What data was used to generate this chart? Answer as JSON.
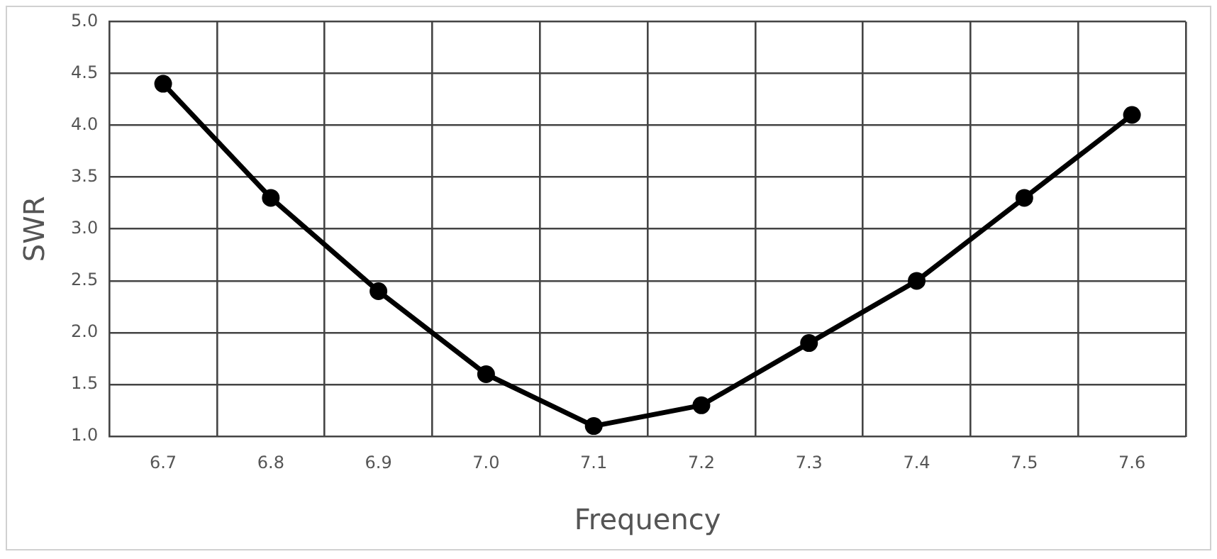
{
  "chart_data": {
    "type": "line",
    "xlabel": "Frequency",
    "ylabel": "SWR",
    "categories": [
      "6.7",
      "6.8",
      "6.9",
      "7.0",
      "7.1",
      "7.2",
      "7.3",
      "7.4",
      "7.5",
      "7.6"
    ],
    "series": [
      {
        "color": "#000000",
        "values": [
          4.4,
          3.3,
          2.4,
          1.6,
          1.1,
          1.3,
          1.9,
          2.5,
          3.3,
          4.1
        ]
      }
    ],
    "ylim": [
      1.0,
      5.0
    ],
    "yticks": [
      {
        "value": 1,
        "label": "1.0"
      },
      {
        "value": 1.5,
        "label": "1.5"
      },
      {
        "value": 2,
        "label": "2.0"
      },
      {
        "value": 2.5,
        "label": "2.5"
      },
      {
        "value": 3,
        "label": "3.0"
      },
      {
        "value": 3.5,
        "label": "3.5"
      },
      {
        "value": 4,
        "label": "4.0"
      },
      {
        "value": 4.5,
        "label": "4.5"
      },
      {
        "value": 5,
        "label": "5.0"
      }
    ],
    "grid": true,
    "legend": false,
    "marker": "circle",
    "line_style": "solid"
  }
}
